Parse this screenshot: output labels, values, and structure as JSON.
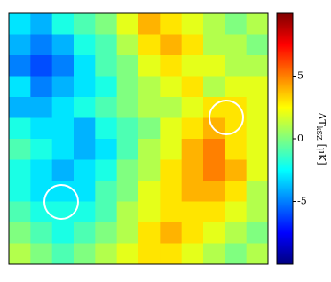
{
  "chart_data": {
    "type": "heatmap",
    "colormap": "jet",
    "clim": [
      -10,
      10
    ],
    "cticks": [
      -5,
      0,
      5
    ],
    "colorbar_label": {
      "main": "ΔT",
      "sub": "kSZ",
      "unit": "[μK]"
    },
    "values": [
      [
        -3,
        -4,
        -2,
        -1,
        0,
        2,
        4,
        3,
        2,
        1,
        0,
        1
      ],
      [
        -4,
        -5,
        -4,
        -2,
        -1,
        1,
        3,
        4,
        3,
        1,
        1,
        0
      ],
      [
        -5,
        -6,
        -5,
        -3,
        -1,
        0,
        2,
        3,
        2,
        2,
        1,
        1
      ],
      [
        -3,
        -5,
        -4,
        -3,
        -2,
        0,
        1,
        2,
        3,
        1,
        2,
        2
      ],
      [
        -4,
        -4,
        -3,
        -2,
        -1,
        0,
        1,
        1,
        2,
        3,
        3,
        2
      ],
      [
        -2,
        -3,
        -3,
        -4,
        -2,
        -1,
        0,
        2,
        3,
        4,
        3,
        2
      ],
      [
        -1,
        -2,
        -3,
        -4,
        -3,
        -1,
        1,
        2,
        4,
        5,
        3,
        2
      ],
      [
        -2,
        -3,
        -4,
        -3,
        -2,
        0,
        1,
        3,
        4,
        5,
        4,
        2
      ],
      [
        -2,
        -3,
        -3,
        -3,
        -1,
        0,
        2,
        3,
        4,
        4,
        3,
        1
      ],
      [
        -1,
        -2,
        -2,
        -2,
        -1,
        1,
        2,
        3,
        3,
        3,
        2,
        1
      ],
      [
        0,
        -1,
        -2,
        -1,
        0,
        1,
        3,
        4,
        3,
        2,
        1,
        0
      ],
      [
        1,
        0,
        -1,
        0,
        1,
        2,
        3,
        3,
        2,
        1,
        0,
        1
      ]
    ]
  }
}
